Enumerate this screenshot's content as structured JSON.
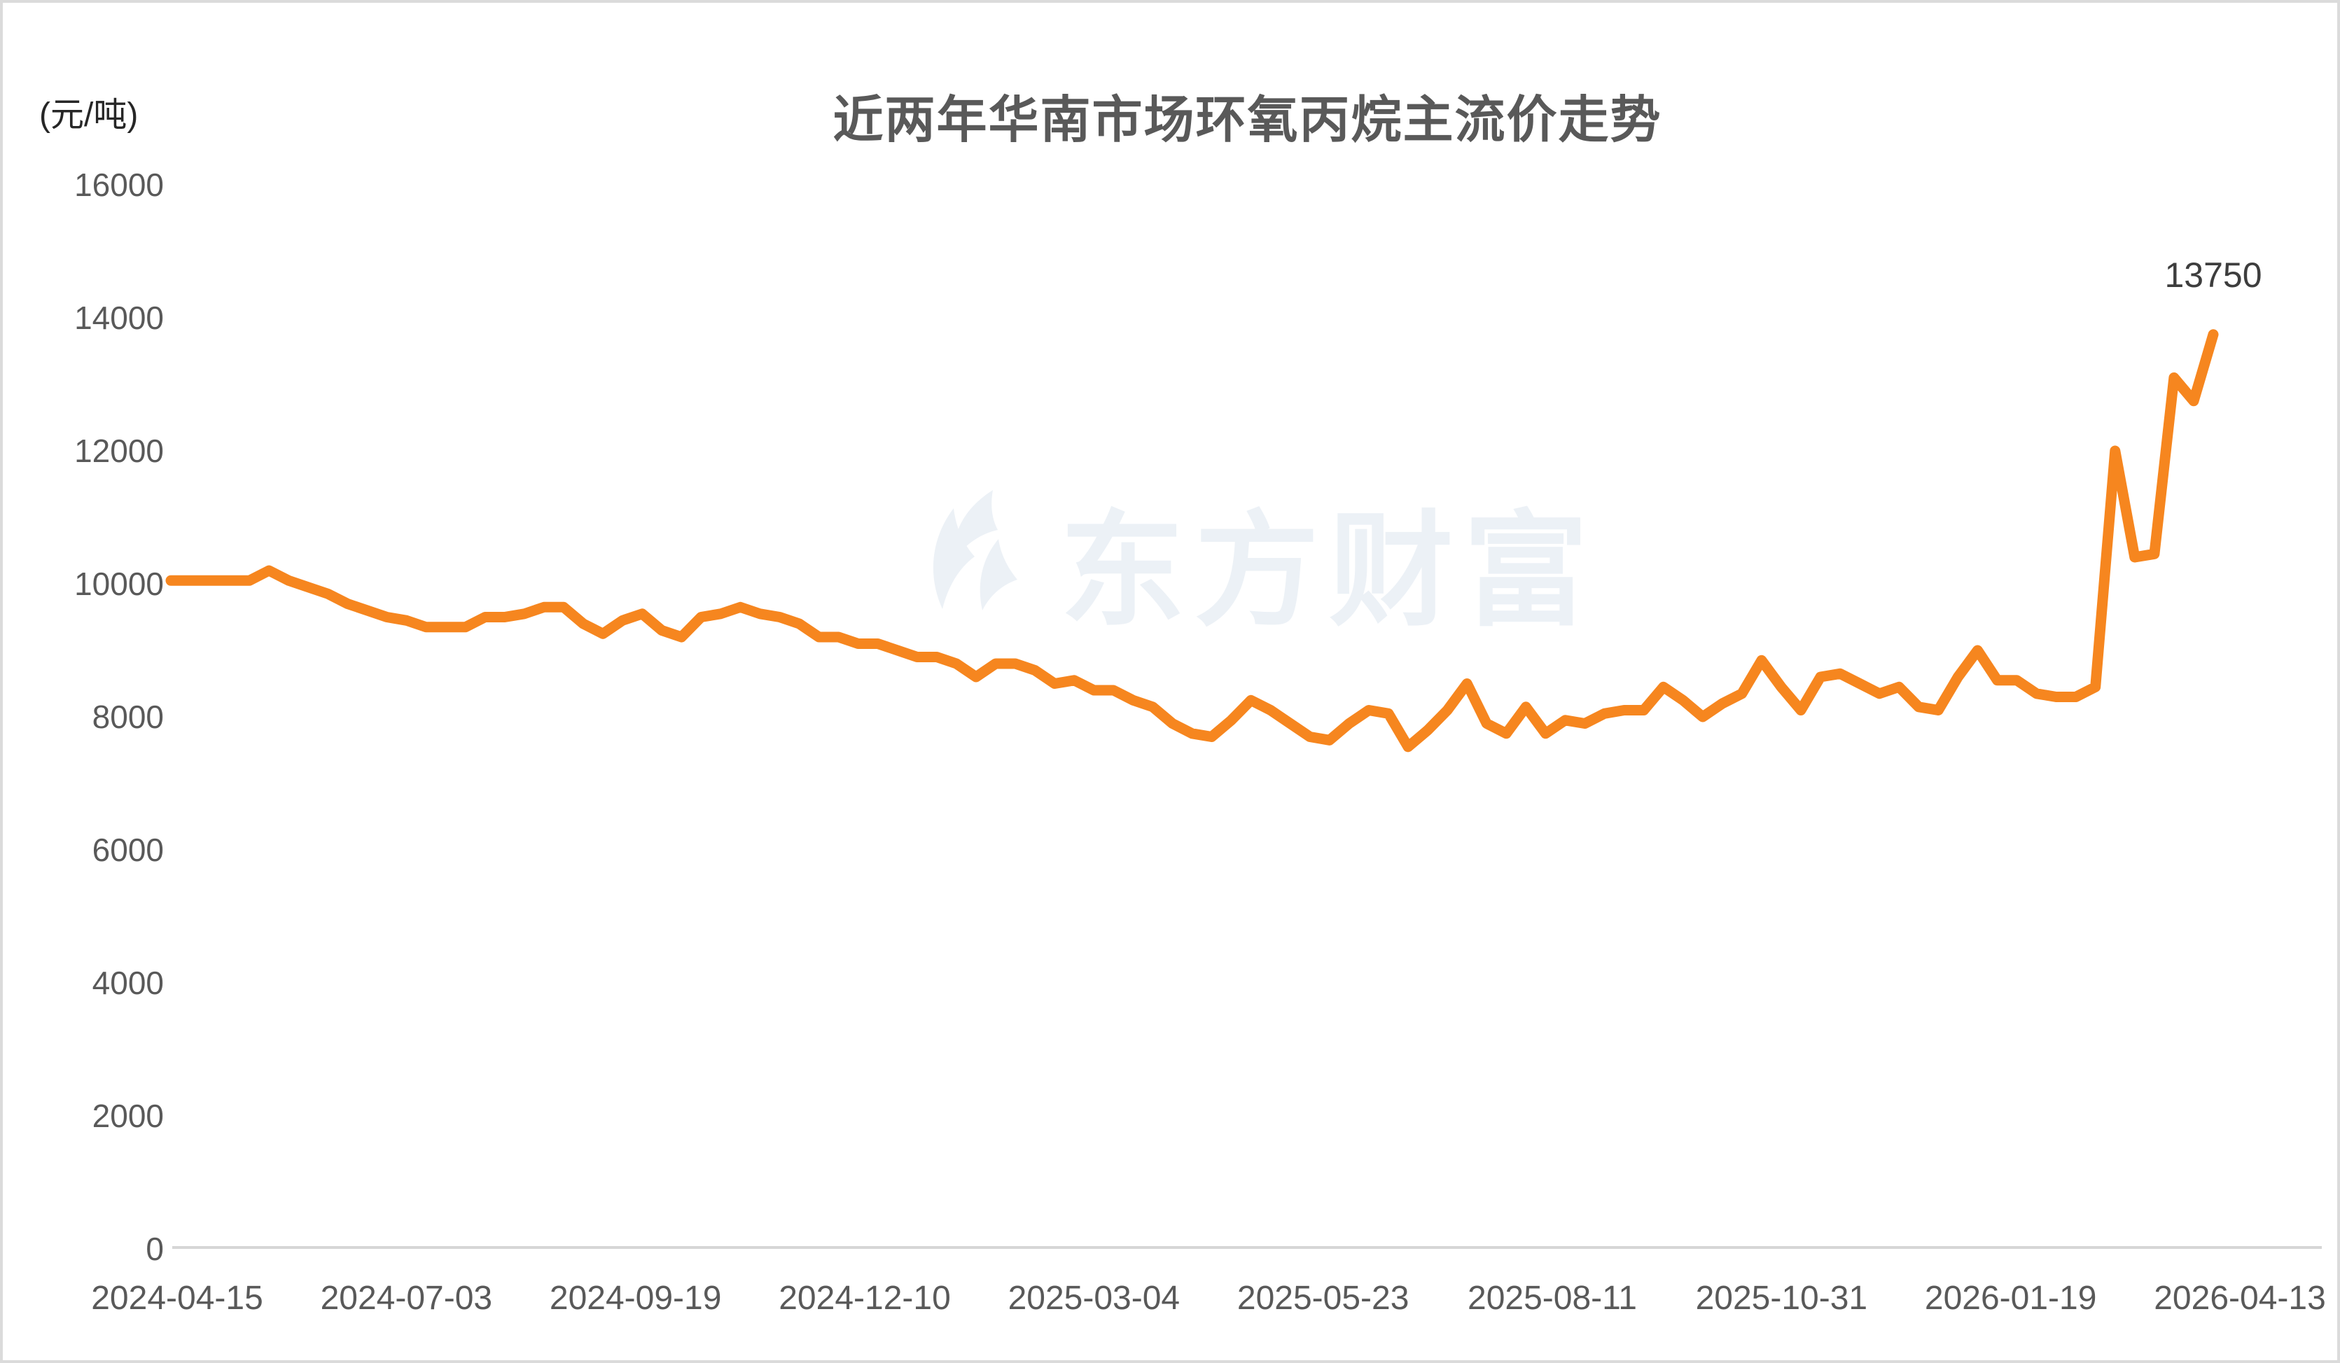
{
  "title": "近两年华南市场环氧丙烷主流价走势",
  "unit_label": "(元/吨)",
  "watermark_text": "东方财富",
  "last_point_label": "13750",
  "colors": {
    "line": "#F6861F",
    "title": "#595959",
    "tick_label": "#595959",
    "axis_line": "#D6D6D6",
    "data_label": "#3D3D3D",
    "watermark": "#ECF1F6",
    "unit_label": "#262626",
    "page_border": "#DBDBDB"
  },
  "chart_data": {
    "type": "line",
    "title": "近两年华南市场环氧丙烷主流价走势",
    "ylabel": "(元/吨)",
    "ylim": [
      0,
      16000
    ],
    "y_ticks": [
      0,
      2000,
      4000,
      6000,
      8000,
      10000,
      12000,
      14000,
      16000
    ],
    "x_tick_labels": [
      "2024-04-15",
      "2024-07-03",
      "2024-09-19",
      "2024-12-10",
      "2025-03-04",
      "2025-05-23",
      "2025-08-11",
      "2025-10-31",
      "2026-01-19",
      "2026-04-13"
    ],
    "grid": false,
    "legend_position": "none",
    "last_value": 13750,
    "series": [
      {
        "name": "华南市场环氧丙烷主流价",
        "dates": [
          "2024-04-15",
          "2024-04-22",
          "2024-04-29",
          "2024-05-06",
          "2024-05-13",
          "2024-05-20",
          "2024-05-27",
          "2024-06-03",
          "2024-06-10",
          "2024-06-17",
          "2024-06-24",
          "2024-07-01",
          "2024-07-08",
          "2024-07-15",
          "2024-07-22",
          "2024-07-29",
          "2024-08-05",
          "2024-08-12",
          "2024-08-19",
          "2024-08-26",
          "2024-09-02",
          "2024-09-09",
          "2024-09-16",
          "2024-09-23",
          "2024-09-30",
          "2024-10-07",
          "2024-10-14",
          "2024-10-21",
          "2024-10-28",
          "2024-11-04",
          "2024-11-11",
          "2024-11-18",
          "2024-11-25",
          "2024-12-02",
          "2024-12-09",
          "2024-12-16",
          "2024-12-23",
          "2024-12-30",
          "2025-01-06",
          "2025-01-13",
          "2025-01-20",
          "2025-01-27",
          "2025-02-03",
          "2025-02-10",
          "2025-02-17",
          "2025-02-24",
          "2025-03-03",
          "2025-03-10",
          "2025-03-17",
          "2025-03-24",
          "2025-03-31",
          "2025-04-07",
          "2025-04-14",
          "2025-04-21",
          "2025-04-28",
          "2025-05-05",
          "2025-05-12",
          "2025-05-19",
          "2025-05-26",
          "2025-06-02",
          "2025-06-09",
          "2025-06-16",
          "2025-06-23",
          "2025-06-30",
          "2025-07-07",
          "2025-07-14",
          "2025-07-21",
          "2025-07-28",
          "2025-08-04",
          "2025-08-11",
          "2025-08-18",
          "2025-08-25",
          "2025-09-01",
          "2025-09-08",
          "2025-09-15",
          "2025-09-22",
          "2025-09-29",
          "2025-10-06",
          "2025-10-13",
          "2025-10-20",
          "2025-10-27",
          "2025-11-03",
          "2025-11-10",
          "2025-11-17",
          "2025-11-24",
          "2025-12-01",
          "2025-12-08",
          "2025-12-15",
          "2025-12-22",
          "2025-12-29",
          "2026-01-05",
          "2026-01-12",
          "2026-01-19",
          "2026-01-26",
          "2026-02-02",
          "2026-02-09",
          "2026-02-16",
          "2026-02-23",
          "2026-03-02",
          "2026-03-09",
          "2026-03-16",
          "2026-03-23",
          "2026-03-30",
          "2026-04-06",
          "2026-04-13"
        ],
        "values": [
          10050,
          10050,
          10050,
          10050,
          10050,
          10200,
          10050,
          9950,
          9850,
          9700,
          9600,
          9500,
          9450,
          9350,
          9350,
          9350,
          9500,
          9500,
          9550,
          9650,
          9650,
          9400,
          9250,
          9450,
          9550,
          9300,
          9200,
          9500,
          9550,
          9650,
          9550,
          9500,
          9400,
          9200,
          9200,
          9100,
          9100,
          9000,
          8900,
          8900,
          8800,
          8600,
          8800,
          8800,
          8700,
          8500,
          8550,
          8400,
          8400,
          8250,
          8150,
          7900,
          7750,
          7700,
          7950,
          8250,
          8100,
          7900,
          7700,
          7650,
          7900,
          8100,
          8050,
          7550,
          7800,
          8100,
          8500,
          7900,
          7750,
          8150,
          7750,
          7950,
          7900,
          8050,
          8100,
          8100,
          8450,
          8250,
          8000,
          8200,
          8350,
          8850,
          8450,
          8100,
          8600,
          8650,
          8500,
          8350,
          8450,
          8150,
          8100,
          8600,
          9000,
          8550,
          8550,
          8350,
          8300,
          8300,
          8450,
          12000,
          10400,
          10450,
          13100,
          12750,
          13750
        ]
      }
    ]
  }
}
